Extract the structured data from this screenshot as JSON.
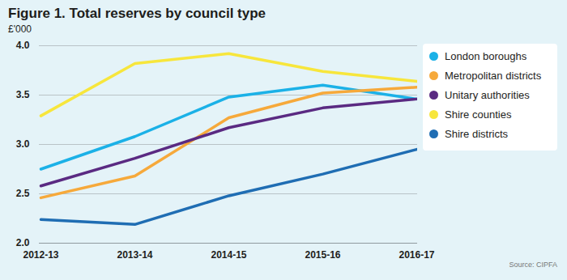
{
  "chart_data": {
    "type": "line",
    "title": "Figure 1. Total reserves by council type",
    "subtitle": "£'000",
    "caption": "Source: CIPFA",
    "categories": [
      "2012-13",
      "2013-14",
      "2014-15",
      "2015-16",
      "2016-17"
    ],
    "series": [
      {
        "name": "London boroughs",
        "color": "#1bb1e7",
        "values": [
          2.75,
          3.08,
          3.48,
          3.6,
          3.46
        ]
      },
      {
        "name": "Metropolitan districts",
        "color": "#f6a93b",
        "values": [
          2.46,
          2.68,
          3.27,
          3.52,
          3.58
        ]
      },
      {
        "name": "Unitary authorities",
        "color": "#5a2a82",
        "values": [
          2.58,
          2.86,
          3.17,
          3.37,
          3.46
        ]
      },
      {
        "name": "Shire counties",
        "color": "#f7e63c",
        "values": [
          3.29,
          3.82,
          3.92,
          3.74,
          3.64
        ]
      },
      {
        "name": "Shire districts",
        "color": "#1f6db3",
        "values": [
          2.24,
          2.19,
          2.48,
          2.7,
          2.95
        ]
      }
    ],
    "ylim": [
      2,
      4
    ],
    "yticks": [
      {
        "value": 2,
        "label": "2.0"
      },
      2.5,
      {
        "value": 3,
        "label": "3.0"
      },
      3.5,
      {
        "value": 4,
        "label": "4.0"
      }
    ],
    "grid": true,
    "legend": "right"
  }
}
